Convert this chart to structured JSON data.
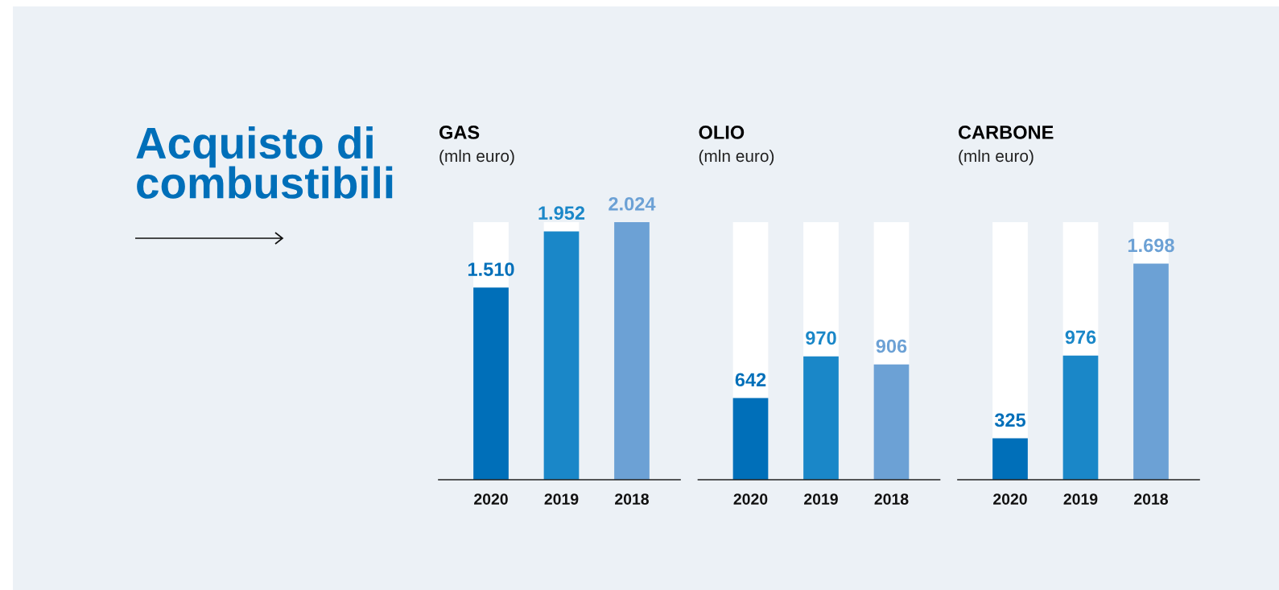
{
  "chart_data": [
    {
      "type": "other",
      "title": "Acquisto di\ncombustibili"
    },
    {
      "type": "bar",
      "title": "GAS",
      "subtitle": "(mln euro)",
      "categories": [
        "2020",
        "2019",
        "2018"
      ],
      "colors": [
        "#006fb9",
        "#1a87c8",
        "#6ca1d5"
      ],
      "values": [
        1510,
        1952,
        2024
      ],
      "value_labels": [
        "1.510",
        "1.952",
        "2.024"
      ],
      "ylim": [
        0,
        2024
      ],
      "tick_labels": "x",
      "bands": [
        {
          "axis": "x",
          "from": "2020",
          "to": "2020",
          "color": "#ffffff"
        },
        {
          "axis": "x",
          "from": "2019",
          "to": "2019",
          "color": "#ffffff"
        }
      ]
    },
    {
      "type": "bar",
      "title": "OLIO",
      "subtitle": "(mln euro)",
      "categories": [
        "2020",
        "2019",
        "2018"
      ],
      "colors": [
        "#006fb9",
        "#1a87c8",
        "#6ca1d5"
      ],
      "values": [
        642,
        970,
        906
      ],
      "value_labels": [
        "642",
        "970",
        "906"
      ],
      "tick_labels": "x",
      "bands": [
        {
          "axis": "x",
          "from": "2020",
          "to": "2020",
          "color": "#ffffff"
        },
        {
          "axis": "x",
          "from": "2019",
          "to": "2019",
          "color": "#ffffff"
        },
        {
          "axis": "x",
          "from": "2018",
          "to": "2018",
          "color": "#ffffff"
        }
      ]
    },
    {
      "type": "bar",
      "title": "CARBONE",
      "subtitle": "(mln euro)",
      "categories": [
        "2020",
        "2019",
        "2018"
      ],
      "colors": [
        "#006fb9",
        "#1a87c8",
        "#6ca1d5"
      ],
      "values": [
        325,
        976,
        1698
      ],
      "value_labels": [
        "325",
        "976",
        "1.698"
      ],
      "tick_labels": "x",
      "bands": [
        {
          "axis": "x",
          "from": "2020",
          "to": "2020",
          "color": "#ffffff"
        },
        {
          "axis": "x",
          "from": "2019",
          "to": "2019",
          "color": "#ffffff"
        },
        {
          "axis": "x",
          "from": "2018",
          "to": "2018",
          "color": "#ffffff"
        }
      ]
    }
  ]
}
